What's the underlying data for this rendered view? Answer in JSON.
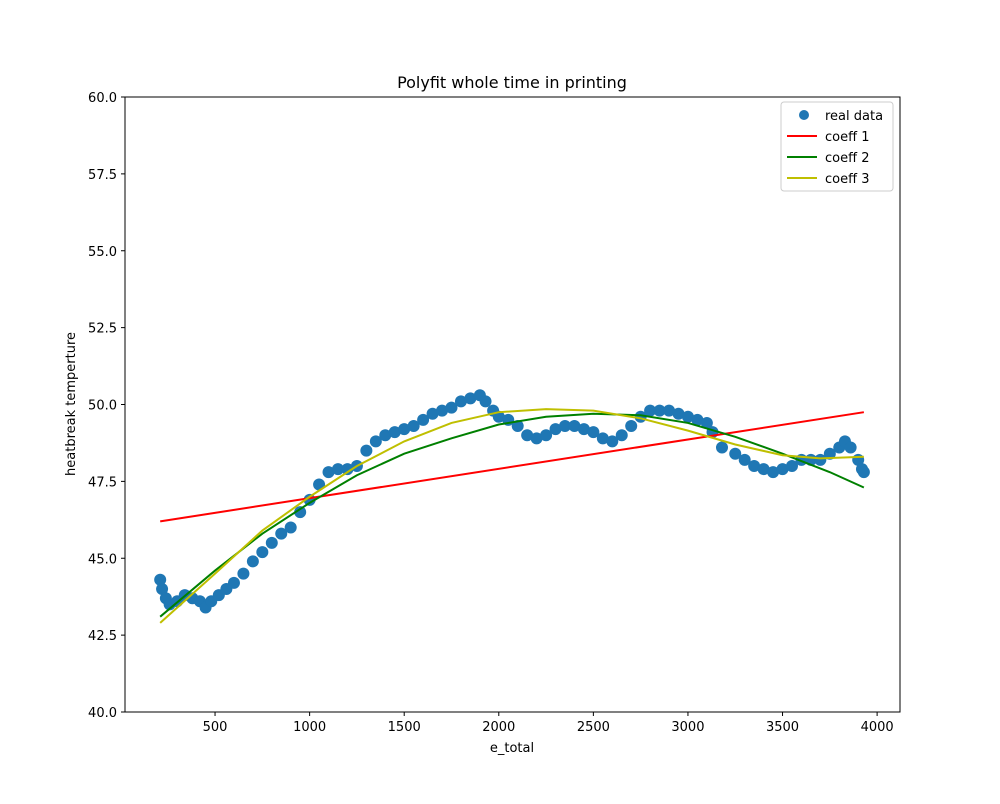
{
  "chart_data": {
    "type": "scatter",
    "title": "Polyfit whole time in printing",
    "xlabel": "e_total",
    "ylabel": "heatbreak temperture",
    "xlim": [
      24,
      4121
    ],
    "ylim": [
      40,
      60
    ],
    "xticks": [
      500,
      1000,
      1500,
      2000,
      2500,
      3000,
      3500,
      4000
    ],
    "xtick_labels": [
      "500",
      "1000",
      "1500",
      "2000",
      "2500",
      "3000",
      "3500",
      "4000"
    ],
    "yticks": [
      40,
      42.5,
      45,
      47.5,
      50,
      52.5,
      55,
      57.5,
      60
    ],
    "ytick_labels": [
      "40.0",
      "42.5",
      "45.0",
      "47.5",
      "50.0",
      "52.5",
      "55.0",
      "57.5",
      "60.0"
    ],
    "grid": false,
    "legend_position": "top-right",
    "series": [
      {
        "name": "real data",
        "kind": "markers",
        "color": "#1f77b4",
        "x": [
          210,
          220,
          240,
          260,
          300,
          340,
          380,
          420,
          450,
          480,
          520,
          560,
          600,
          650,
          700,
          750,
          800,
          850,
          900,
          950,
          1000,
          1050,
          1100,
          1150,
          1200,
          1250,
          1300,
          1350,
          1400,
          1450,
          1500,
          1550,
          1600,
          1650,
          1700,
          1750,
          1800,
          1850,
          1900,
          1930,
          1970,
          2000,
          2050,
          2100,
          2150,
          2200,
          2250,
          2300,
          2350,
          2400,
          2450,
          2500,
          2550,
          2600,
          2650,
          2700,
          2750,
          2800,
          2850,
          2900,
          2950,
          3000,
          3050,
          3100,
          3130,
          3180,
          3250,
          3300,
          3350,
          3400,
          3450,
          3500,
          3550,
          3600,
          3650,
          3700,
          3750,
          3800,
          3830,
          3860,
          3900,
          3920,
          3930
        ],
        "y": [
          44.3,
          44.0,
          43.7,
          43.5,
          43.6,
          43.8,
          43.7,
          43.6,
          43.4,
          43.6,
          43.8,
          44.0,
          44.2,
          44.5,
          44.9,
          45.2,
          45.5,
          45.8,
          46.0,
          46.5,
          46.9,
          47.4,
          47.8,
          47.9,
          47.9,
          48.0,
          48.5,
          48.8,
          49.0,
          49.1,
          49.2,
          49.3,
          49.5,
          49.7,
          49.8,
          49.9,
          50.1,
          50.2,
          50.3,
          50.1,
          49.8,
          49.6,
          49.5,
          49.3,
          49.0,
          48.9,
          49.0,
          49.2,
          49.3,
          49.3,
          49.2,
          49.1,
          48.9,
          48.8,
          49.0,
          49.3,
          49.6,
          49.8,
          49.8,
          49.8,
          49.7,
          49.6,
          49.5,
          49.4,
          49.1,
          48.6,
          48.4,
          48.2,
          48.0,
          47.9,
          47.8,
          47.9,
          48.0,
          48.2,
          48.2,
          48.2,
          48.4,
          48.6,
          48.8,
          48.6,
          48.2,
          47.9,
          47.8
        ]
      },
      {
        "name": "coeff 1",
        "kind": "line",
        "color": "#ff0000",
        "x": [
          210,
          3930
        ],
        "y": [
          46.2,
          49.75
        ]
      },
      {
        "name": "coeff 2",
        "kind": "line",
        "color": "#008000",
        "x": [
          210,
          500,
          750,
          1000,
          1250,
          1500,
          1750,
          2000,
          2250,
          2500,
          2750,
          3000,
          3250,
          3500,
          3750,
          3930
        ],
        "y": [
          43.1,
          44.6,
          45.8,
          46.8,
          47.7,
          48.4,
          48.9,
          49.35,
          49.6,
          49.7,
          49.65,
          49.4,
          48.95,
          48.4,
          47.8,
          47.3
        ]
      },
      {
        "name": "coeff 3",
        "kind": "line",
        "color": "#bfbf00",
        "x": [
          210,
          500,
          750,
          1000,
          1250,
          1500,
          1750,
          2000,
          2250,
          2500,
          2750,
          3000,
          3250,
          3500,
          3700,
          3930
        ],
        "y": [
          42.9,
          44.5,
          45.9,
          47.0,
          48.0,
          48.8,
          49.4,
          49.75,
          49.85,
          49.8,
          49.55,
          49.15,
          48.7,
          48.35,
          48.25,
          48.3
        ]
      }
    ]
  }
}
